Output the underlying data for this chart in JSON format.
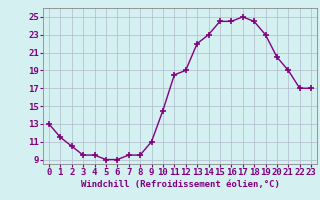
{
  "x": [
    0,
    1,
    2,
    3,
    4,
    5,
    6,
    7,
    8,
    9,
    10,
    11,
    12,
    13,
    14,
    15,
    16,
    17,
    18,
    19,
    20,
    21,
    22,
    23
  ],
  "y": [
    13,
    11.5,
    10.5,
    9.5,
    9.5,
    9.0,
    9.0,
    9.5,
    9.5,
    11.0,
    14.5,
    18.5,
    19.0,
    22.0,
    23.0,
    24.5,
    24.5,
    25.0,
    24.5,
    23.0,
    20.5,
    19.0,
    17.0,
    17.0
  ],
  "line_color": "#800080",
  "marker": "+",
  "marker_size": 4,
  "bg_color": "#d4f0f0",
  "grid_color": "#b0b8cc",
  "xlabel": "Windchill (Refroidissement éolien,°C)",
  "ylabel": "",
  "xlim": [
    -0.5,
    23.5
  ],
  "ylim": [
    8.5,
    26
  ],
  "yticks": [
    9,
    11,
    13,
    15,
    17,
    19,
    21,
    23,
    25
  ],
  "xticks": [
    0,
    1,
    2,
    3,
    4,
    5,
    6,
    7,
    8,
    9,
    10,
    11,
    12,
    13,
    14,
    15,
    16,
    17,
    18,
    19,
    20,
    21,
    22,
    23
  ],
  "line_width": 1.0,
  "marker_color": "#800080",
  "tick_fontsize": 6.5,
  "xlabel_fontsize": 6.5
}
